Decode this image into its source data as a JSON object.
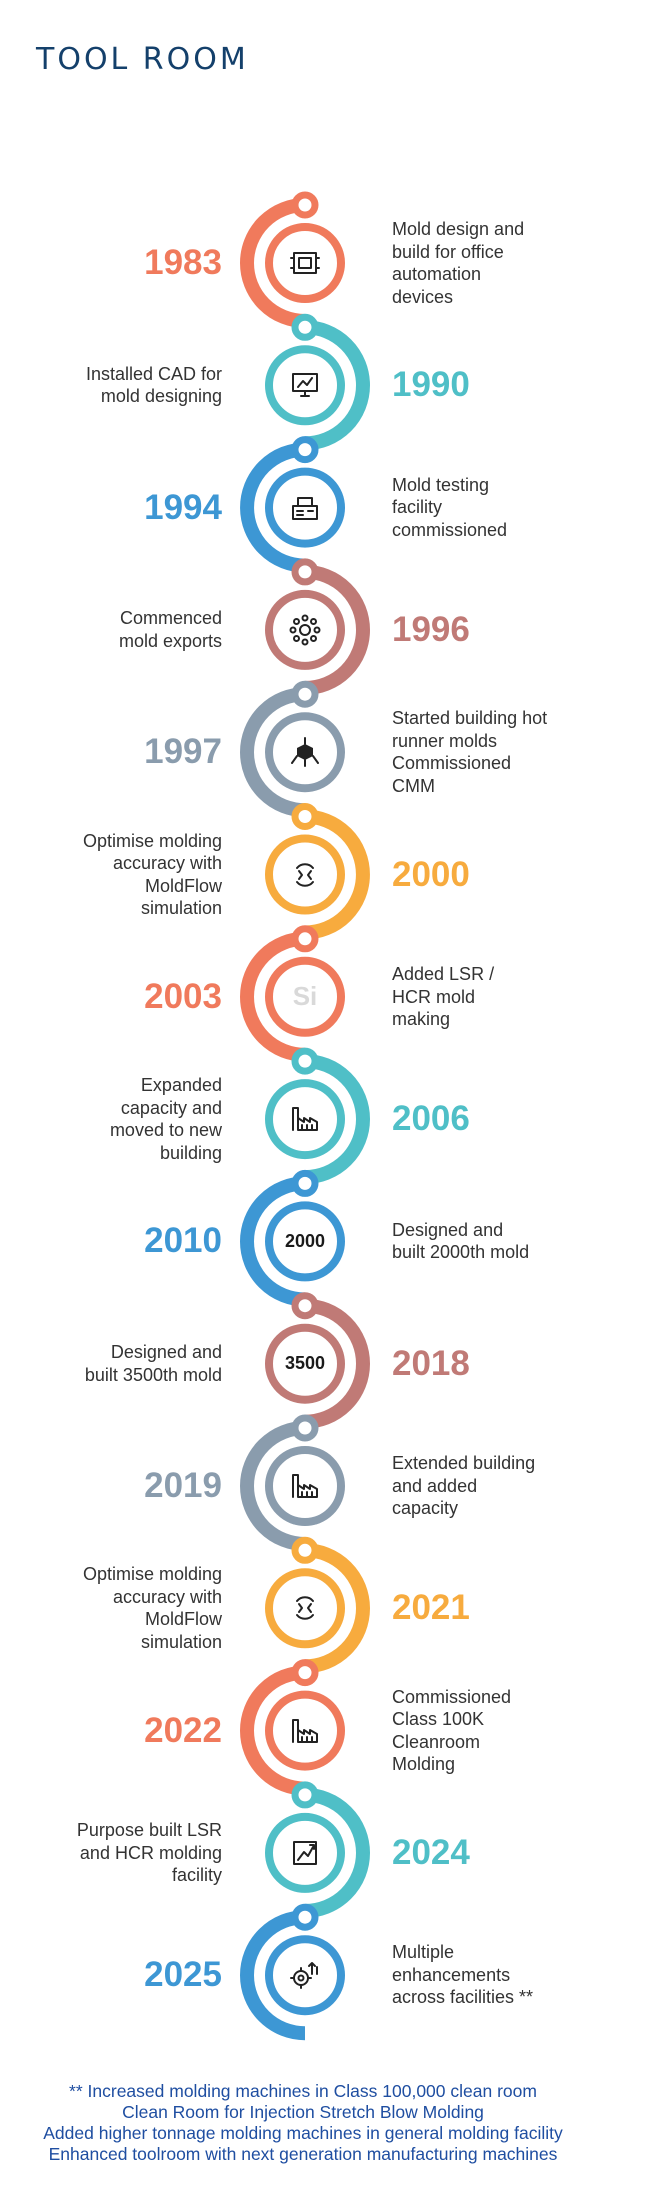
{
  "title": "TOOL ROOM",
  "milestones": [
    {
      "year": "1983",
      "color": "#f07a5c",
      "desc_lines": [
        "Mold design and",
        "build for office",
        "automation",
        "devices"
      ],
      "icon": "mold-design-icon"
    },
    {
      "year": "1990",
      "color": "#4fbfc7",
      "desc_lines": [
        "Installed CAD for",
        "mold designing"
      ],
      "icon": "cad-monitor-icon"
    },
    {
      "year": "1994",
      "color": "#3d97d4",
      "desc_lines": [
        "Mold testing",
        "facility",
        "commissioned"
      ],
      "icon": "testing-machine-icon"
    },
    {
      "year": "1996",
      "color": "#c07a76",
      "desc_lines": [
        "Commenced",
        "mold exports"
      ],
      "icon": "export-network-icon"
    },
    {
      "year": "1997",
      "color": "#8a9cad",
      "desc_lines": [
        "Started building hot",
        "runner molds",
        "Commissioned",
        "CMM"
      ],
      "icon": "cmm-cube-icon"
    },
    {
      "year": "2000",
      "color": "#f7ab3e",
      "desc_lines": [
        "Optimise molding",
        "accuracy with",
        "MoldFlow",
        "simulation"
      ],
      "icon": "moldflow-icon"
    },
    {
      "year": "2003",
      "color": "#f07a5c",
      "desc_lines": [
        "Added LSR /",
        "HCR mold",
        "making"
      ],
      "icon": "silicone-icon",
      "icon_text": "Si"
    },
    {
      "year": "2006",
      "color": "#4fbfc7",
      "desc_lines": [
        "Expanded",
        "capacity and",
        "moved to new",
        "building"
      ],
      "icon": "factory-icon"
    },
    {
      "year": "2010",
      "color": "#3d97d4",
      "desc_lines": [
        "Designed and",
        "built 2000th mold"
      ],
      "icon": "milestone-2000-icon",
      "icon_text": "2000"
    },
    {
      "year": "2018",
      "color": "#c07a76",
      "desc_lines": [
        "Designed and",
        "built 3500th mold"
      ],
      "icon": "milestone-3500-icon",
      "icon_text": "3500"
    },
    {
      "year": "2019",
      "color": "#8a9cad",
      "desc_lines": [
        "Extended building",
        "and added",
        "capacity"
      ],
      "icon": "factory-icon"
    },
    {
      "year": "2021",
      "color": "#f7ab3e",
      "desc_lines": [
        "Optimise molding",
        "accuracy with",
        "MoldFlow",
        "simulation"
      ],
      "icon": "moldflow-icon"
    },
    {
      "year": "2022",
      "color": "#f07a5c",
      "desc_lines": [
        "Commissioned",
        "Class 100K",
        "Cleanroom",
        "Molding"
      ],
      "icon": "cleanroom-factory-icon"
    },
    {
      "year": "2024",
      "color": "#4fbfc7",
      "desc_lines": [
        "Purpose built LSR",
        "and HCR molding",
        "facility"
      ],
      "icon": "facility-icon"
    },
    {
      "year": "2025",
      "color": "#3d97d4",
      "desc_lines": [
        "Multiple",
        "enhancements",
        "across facilities **"
      ],
      "icon": "gear-upgrade-icon"
    }
  ],
  "footnote_lines": [
    "** Increased molding machines in Class 100,000 clean room",
    "Clean Room for Injection Stretch Blow Molding",
    "Added higher tonnage molding machines in general molding facility",
    "Enhanced toolroom  with next generation manufacturing machines"
  ]
}
